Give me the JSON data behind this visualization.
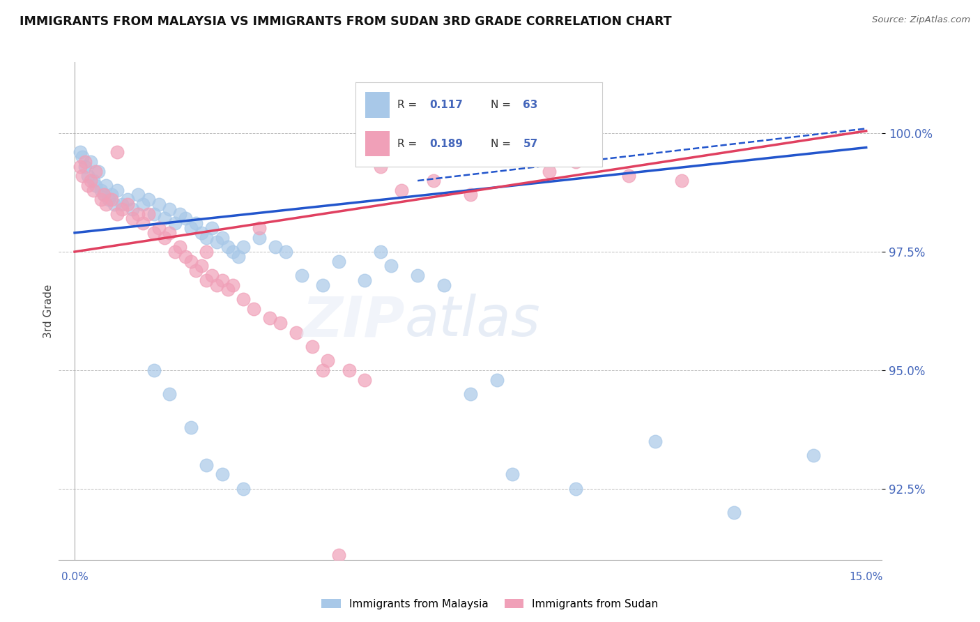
{
  "title": "IMMIGRANTS FROM MALAYSIA VS IMMIGRANTS FROM SUDAN 3RD GRADE CORRELATION CHART",
  "source": "Source: ZipAtlas.com",
  "ylabel": "3rd Grade",
  "y_tick_values": [
    100.0,
    97.5,
    95.0,
    92.5
  ],
  "xlim": [
    0.0,
    15.0
  ],
  "ylim": [
    91.0,
    101.5
  ],
  "color_malaysia": "#A8C8E8",
  "color_sudan": "#F0A0B8",
  "color_trend_malaysia": "#2255CC",
  "color_trend_sudan": "#E04060",
  "color_axis_labels": "#4466BB",
  "malaysia_points_x": [
    0.1,
    0.15,
    0.2,
    0.25,
    0.3,
    0.35,
    0.4,
    0.45,
    0.5,
    0.55,
    0.6,
    0.65,
    0.7,
    0.75,
    0.8,
    0.9,
    1.0,
    1.1,
    1.2,
    1.3,
    1.4,
    1.5,
    1.6,
    1.7,
    1.8,
    1.9,
    2.0,
    2.1,
    2.2,
    2.3,
    2.4,
    2.5,
    2.6,
    2.7,
    2.8,
    2.9,
    3.0,
    3.1,
    3.2,
    3.5,
    3.8,
    4.0,
    4.3,
    4.7,
    5.0,
    5.5,
    6.0,
    6.5,
    7.0,
    7.5,
    8.0,
    8.3,
    9.5,
    11.0,
    12.5,
    14.0,
    5.8,
    1.5,
    1.8,
    2.2,
    2.5,
    2.8,
    3.2
  ],
  "malaysia_points_y": [
    99.6,
    99.5,
    99.3,
    99.1,
    99.4,
    99.0,
    98.9,
    99.2,
    98.8,
    98.7,
    98.9,
    98.6,
    98.7,
    98.5,
    98.8,
    98.5,
    98.6,
    98.4,
    98.7,
    98.5,
    98.6,
    98.3,
    98.5,
    98.2,
    98.4,
    98.1,
    98.3,
    98.2,
    98.0,
    98.1,
    97.9,
    97.8,
    98.0,
    97.7,
    97.8,
    97.6,
    97.5,
    97.4,
    97.6,
    97.8,
    97.6,
    97.5,
    97.0,
    96.8,
    97.3,
    96.9,
    97.2,
    97.0,
    96.8,
    94.5,
    94.8,
    92.8,
    92.5,
    93.5,
    92.0,
    93.2,
    97.5,
    95.0,
    94.5,
    93.8,
    93.0,
    92.8,
    92.5
  ],
  "sudan_points_x": [
    0.1,
    0.15,
    0.2,
    0.25,
    0.3,
    0.35,
    0.4,
    0.5,
    0.55,
    0.6,
    0.7,
    0.8,
    0.9,
    1.0,
    1.1,
    1.2,
    1.3,
    1.4,
    1.5,
    1.6,
    1.7,
    1.8,
    1.9,
    2.0,
    2.1,
    2.2,
    2.3,
    2.4,
    2.5,
    2.6,
    2.7,
    2.8,
    2.9,
    3.0,
    3.2,
    3.4,
    3.7,
    3.9,
    4.2,
    4.5,
    4.8,
    5.2,
    5.5,
    5.8,
    6.2,
    6.8,
    7.5,
    8.0,
    9.0,
    9.5,
    10.5,
    11.5,
    4.7,
    0.8,
    3.5,
    2.5,
    5.0
  ],
  "sudan_points_y": [
    99.3,
    99.1,
    99.4,
    98.9,
    99.0,
    98.8,
    99.2,
    98.6,
    98.7,
    98.5,
    98.6,
    98.3,
    98.4,
    98.5,
    98.2,
    98.3,
    98.1,
    98.3,
    97.9,
    98.0,
    97.8,
    97.9,
    97.5,
    97.6,
    97.4,
    97.3,
    97.1,
    97.2,
    96.9,
    97.0,
    96.8,
    96.9,
    96.7,
    96.8,
    96.5,
    96.3,
    96.1,
    96.0,
    95.8,
    95.5,
    95.2,
    95.0,
    94.8,
    99.3,
    98.8,
    99.0,
    98.7,
    99.5,
    99.2,
    99.4,
    99.1,
    99.0,
    95.0,
    99.6,
    98.0,
    97.5,
    91.1
  ],
  "trend_malaysia_x0": 0.0,
  "trend_malaysia_y0": 97.9,
  "trend_malaysia_x1": 15.0,
  "trend_malaysia_y1": 99.7,
  "trend_sudan_x0": 0.0,
  "trend_sudan_y0": 97.5,
  "trend_sudan_x1": 15.0,
  "trend_sudan_y1": 100.05,
  "dash_malaysia_x0": 6.5,
  "dash_malaysia_y0": 99.0,
  "dash_malaysia_x1": 15.0,
  "dash_malaysia_y1": 100.1
}
